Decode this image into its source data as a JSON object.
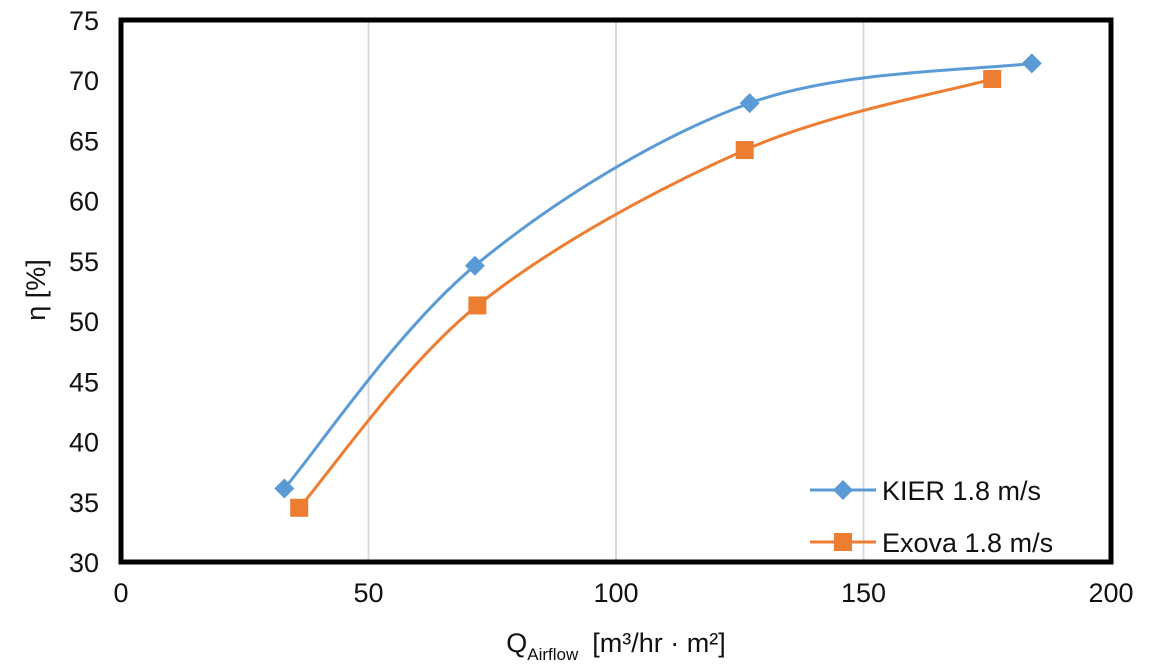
{
  "chart_data": {
    "type": "line",
    "xlabel": "Q",
    "xlabel_sub": "Airflow",
    "xlabel_units": "[m³/hr · m²]",
    "ylabel": "η [%]",
    "xlim": [
      0,
      200
    ],
    "ylim": [
      30,
      75
    ],
    "x_ticks": [
      0,
      50,
      100,
      150,
      200
    ],
    "y_ticks": [
      30,
      35,
      40,
      45,
      50,
      55,
      60,
      65,
      70,
      75
    ],
    "grid": "vertical",
    "legend_position": "bottom-right",
    "series": [
      {
        "name": "KIER 1.8 m/s",
        "color": "#5b9bd5",
        "marker": "diamond",
        "x": [
          33,
          71.5,
          127,
          184
        ],
        "y": [
          36.1,
          54.6,
          68.1,
          71.4
        ]
      },
      {
        "name": "Exova 1.8 m/s",
        "color": "#ed7d31",
        "marker": "square",
        "x": [
          36,
          72,
          126,
          176
        ],
        "y": [
          34.5,
          51.3,
          64.2,
          70.1
        ]
      }
    ]
  }
}
